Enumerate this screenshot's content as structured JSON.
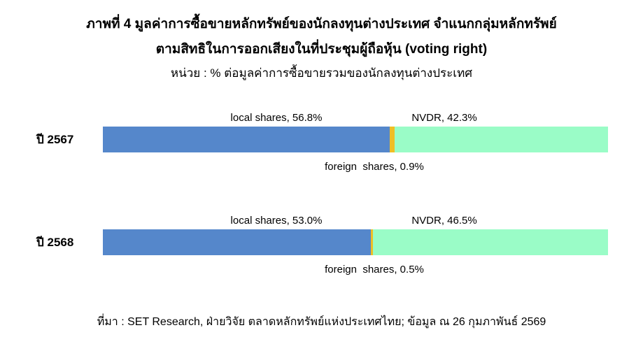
{
  "title": {
    "line1": "ภาพที่ 4 มูลค่าการซื้อขายหลักทรัพย์ของนักลงทุนต่างประเทศ จำแนกกลุ่มหลักทรัพย์",
    "line2": "ตามสิทธิในการออกเสียงในที่ประชุมผู้ถือหุ้น (voting right)",
    "unit_note": "หน่วย : % ต่อมูลค่าการซื้อขายรวมของนักลงทุนต่างประเทศ"
  },
  "colors": {
    "local_shares": "#5587CB",
    "foreign_shares": "#EFBE25",
    "nvdr": "#9AFCC7"
  },
  "chart": {
    "rows": [
      {
        "year_label": "ปี 2567",
        "local_label": "local shares, 56.8%",
        "nvdr_label": "NVDR, 42.3%",
        "foreign_label": "foreign  shares, 0.9%",
        "local_pct": 56.8,
        "foreign_pct": 0.9,
        "nvdr_pct": 42.3
      },
      {
        "year_label": "ปี 2568",
        "local_label": "local shares, 53.0%",
        "nvdr_label": "NVDR, 46.5%",
        "foreign_label": "foreign  shares, 0.5%",
        "local_pct": 53.0,
        "foreign_pct": 0.5,
        "nvdr_pct": 46.5
      }
    ]
  },
  "footer": {
    "source": "ที่มา : SET Research, ฝ่ายวิจัย ตลาดหลักทรัพย์แห่งประเทศไทย; ข้อมูล ณ 26 กุมภาพันธ์ 2569"
  },
  "chart_data": {
    "type": "bar",
    "orientation": "horizontal",
    "stacked": true,
    "categories": [
      "ปี 2567",
      "ปี 2568"
    ],
    "series": [
      {
        "name": "local shares",
        "values": [
          56.8,
          53.0
        ],
        "color": "#5587CB"
      },
      {
        "name": "foreign shares",
        "values": [
          0.9,
          0.5
        ],
        "color": "#EFBE25"
      },
      {
        "name": "NVDR",
        "values": [
          42.3,
          46.5
        ],
        "color": "#9AFCC7"
      }
    ],
    "title": "ภาพที่ 4 มูลค่าการซื้อขายหลักทรัพย์ของนักลงทุนต่างประเทศ จำแนกกลุ่มหลักทรัพย์ ตามสิทธิในการออกเสียงในที่ประชุมผู้ถือหุ้น (voting right)",
    "subtitle": "หน่วย : % ต่อมูลค่าการซื้อขายรวมของนักลงทุนต่างประเทศ",
    "xlabel": "",
    "ylabel": "",
    "xlim": [
      0,
      100
    ],
    "value_unit": "% of total foreign investor trading value",
    "legend_position": "none (inline data labels)",
    "grid": false,
    "source": "ที่มา : SET Research, ฝ่ายวิจัย ตลาดหลักทรัพย์แห่งประเทศไทย; ข้อมูล ณ 26 กุมภาพันธ์ 2569"
  }
}
